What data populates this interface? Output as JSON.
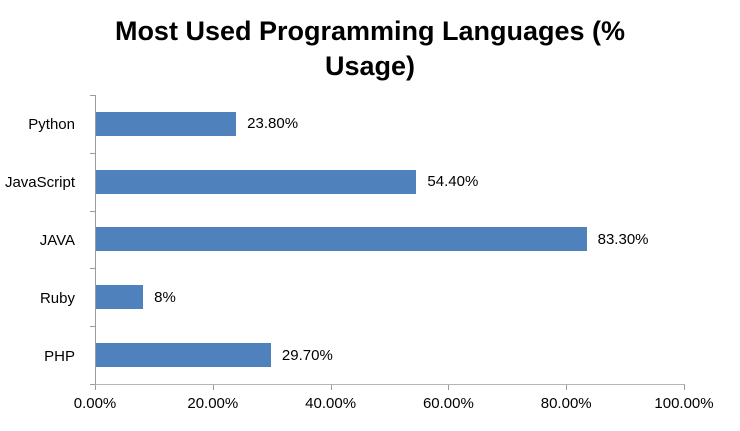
{
  "chart_data": {
    "type": "bar",
    "orientation": "horizontal",
    "title": "Most Used Programming Languages (% Usage)",
    "categories": [
      "Python",
      "JavaScript",
      "JAVA",
      "Ruby",
      "PHP"
    ],
    "values": [
      23.8,
      54.4,
      83.3,
      8,
      29.7
    ],
    "value_labels": [
      "23.80%",
      "54.40%",
      "83.30%",
      "8%",
      "29.70%"
    ],
    "x_tick_labels": [
      "0.00%",
      "20.00%",
      "40.00%",
      "60.00%",
      "80.00%",
      "100.00%"
    ],
    "xlim": [
      0,
      100
    ],
    "xlabel": "",
    "ylabel": "",
    "grid": false,
    "legend": false,
    "colors": {
      "bar": "#4F81BD",
      "axis": "#9b9b9b",
      "text": "#000000",
      "background": "#FFFFFF"
    }
  }
}
